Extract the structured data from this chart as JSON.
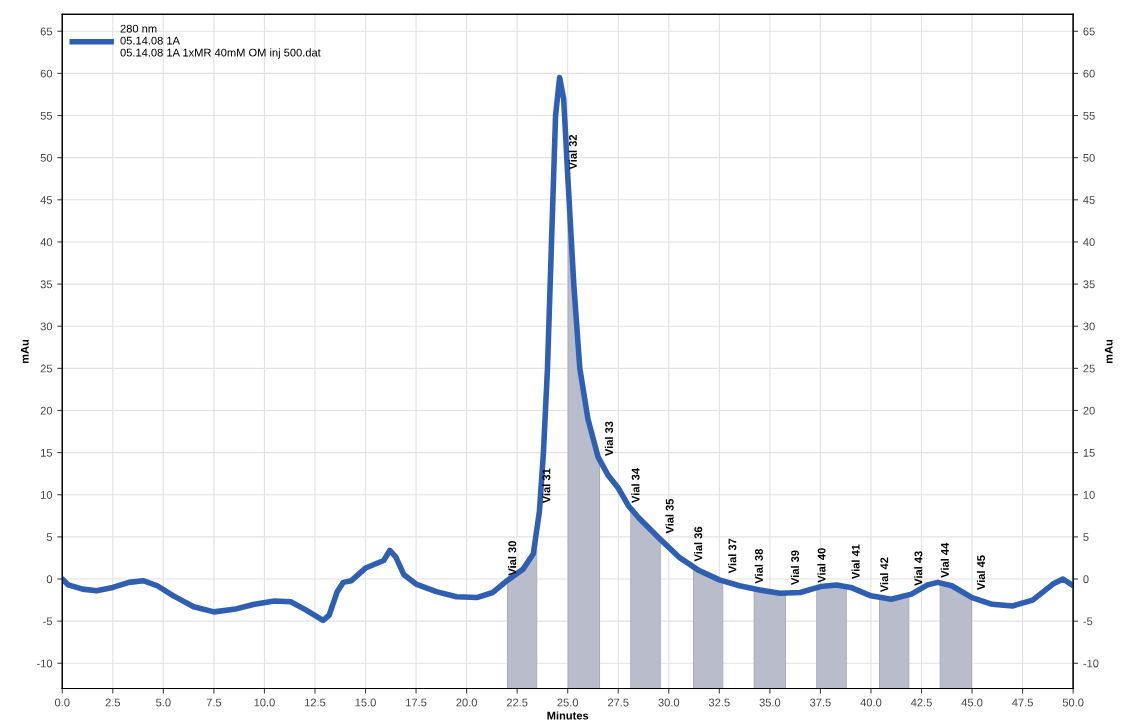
{
  "chart_data": {
    "type": "line",
    "xlabel": "Minutes",
    "ylabel": "mAu",
    "y2label": "mAu",
    "xlim": [
      0,
      50
    ],
    "xticks": [
      {
        "value": 0,
        "label": "0.0"
      },
      {
        "value": 2.5,
        "label": "2.5"
      },
      {
        "value": 5,
        "label": "5.0"
      },
      {
        "value": 7.5,
        "label": "7.5"
      },
      {
        "value": 10,
        "label": "10.0"
      },
      {
        "value": 12.5,
        "label": "12.5"
      },
      {
        "value": 15,
        "label": "15.0"
      },
      {
        "value": 17.5,
        "label": "17.5"
      },
      {
        "value": 20,
        "label": "20.0"
      },
      {
        "value": 22.5,
        "label": "22.5"
      },
      {
        "value": 25,
        "label": "25.0"
      },
      {
        "value": 27.5,
        "label": "27.5"
      },
      {
        "value": 30,
        "label": "30.0"
      },
      {
        "value": 32.5,
        "label": "32.5"
      },
      {
        "value": 35,
        "label": "35.0"
      },
      {
        "value": 37.5,
        "label": "37.5"
      },
      {
        "value": 40,
        "label": "40.0"
      },
      {
        "value": 42.5,
        "label": "42.5"
      },
      {
        "value": 45,
        "label": "45.0"
      },
      {
        "value": 47.5,
        "label": "47.5"
      },
      {
        "value": 50,
        "label": "50.0"
      }
    ],
    "ylim": [
      -13,
      67
    ],
    "yticks": [
      -10,
      -5,
      0,
      5,
      10,
      15,
      20,
      25,
      30,
      35,
      40,
      45,
      50,
      55,
      60,
      65
    ],
    "y2lim": [
      -13,
      67
    ],
    "y2ticks": [
      -10,
      -5,
      0,
      5,
      10,
      15,
      20,
      25,
      30,
      35,
      40,
      45,
      50,
      55,
      60,
      65
    ],
    "grid": true,
    "legend": "top left",
    "marker": "none",
    "line_style": "solid",
    "x": [
      0,
      0.3,
      1,
      1.7,
      2.5,
      3.3,
      4,
      4.7,
      5.5,
      6.5,
      7.5,
      8.5,
      9.5,
      10.5,
      11.3,
      12.0,
      12.9,
      13.2,
      13.6,
      13.9,
      14.3,
      15.0,
      15.6,
      15.9,
      16.2,
      16.5,
      16.9,
      17.5,
      18.5,
      19.5,
      20.5,
      21.3,
      22.0,
      22.8,
      23.3,
      23.6,
      23.8,
      24.0,
      24.2,
      24.4,
      24.6,
      24.8,
      25.0,
      25.3,
      25.6,
      26.0,
      26.5,
      27.0,
      27.5,
      28.0,
      28.5,
      29.5,
      30.5,
      31.5,
      32.5,
      33.5,
      34.5,
      35.5,
      36.5,
      37.5,
      38.3,
      39.0,
      40.0,
      41.0,
      42.0,
      42.8,
      43.3,
      44.0,
      45.0,
      46.0,
      47.0,
      48.0,
      49.0,
      49.5,
      50.0
    ],
    "series": [
      {
        "name": "280 nm\n05.14.08 1A\n05.14.08 1A 1xMR 40mM OM inj 500.dat",
        "color": "#2f5fb3",
        "values": [
          0,
          -0.7,
          -1.2,
          -1.4,
          -1.0,
          -0.4,
          -0.2,
          -0.8,
          -2.0,
          -3.3,
          -3.9,
          -3.6,
          -3.0,
          -2.6,
          -2.7,
          -3.6,
          -4.9,
          -4.3,
          -1.5,
          -0.4,
          -0.2,
          1.3,
          1.9,
          2.2,
          3.4,
          2.6,
          0.5,
          -0.6,
          -1.5,
          -2.1,
          -2.2,
          -1.6,
          -0.2,
          1.2,
          3.0,
          8,
          15,
          25,
          40,
          55,
          59.5,
          57,
          48,
          35,
          25,
          19,
          14.5,
          12.3,
          10.8,
          8.7,
          7.3,
          4.9,
          2.6,
          1.0,
          -0.1,
          -0.8,
          -1.3,
          -1.7,
          -1.6,
          -0.9,
          -0.7,
          -1.0,
          -2.0,
          -2.4,
          -1.8,
          -0.7,
          -0.4,
          -0.8,
          -2.2,
          -3.0,
          -3.2,
          -2.5,
          -0.6,
          0.0,
          -0.8
        ]
      }
    ],
    "bands": [
      {
        "axis": "x",
        "from": 22.0,
        "to": 23.5,
        "label": "Vial 30",
        "color": "#b9bccb"
      },
      {
        "axis": "x",
        "from": 25.0,
        "to": 26.6,
        "label": "Vial 32",
        "color": "#b9bccb"
      },
      {
        "axis": "x",
        "from": 28.1,
        "to": 29.6,
        "label": "Vial 34",
        "color": "#b9bccb"
      },
      {
        "axis": "x",
        "from": 31.2,
        "to": 32.7,
        "label": "Vial 36",
        "color": "#b9bccb"
      },
      {
        "axis": "x",
        "from": 34.2,
        "to": 35.8,
        "label": "Vial 38",
        "color": "#b9bccb"
      },
      {
        "axis": "x",
        "from": 37.3,
        "to": 38.8,
        "label": "Vial 40",
        "color": "#b9bccb"
      },
      {
        "axis": "x",
        "from": 40.4,
        "to": 41.9,
        "label": "Vial 42",
        "color": "#b9bccb"
      },
      {
        "axis": "x",
        "from": 43.4,
        "to": 45.0,
        "label": "Vial 44",
        "color": "#b9bccb"
      }
    ],
    "annotations": [
      {
        "text": "Vial 31",
        "x": 23.6,
        "y": 8
      },
      {
        "text": "Vial 33",
        "x": 26.7,
        "y": 13.6
      },
      {
        "text": "Vial 35",
        "x": 29.7,
        "y": 4.4
      },
      {
        "text": "Vial 37",
        "x": 32.8,
        "y": -0.3
      },
      {
        "text": "Vial 39",
        "x": 35.9,
        "y": -1.7
      },
      {
        "text": "Vial 41",
        "x": 38.9,
        "y": -1.0
      },
      {
        "text": "Vial 43",
        "x": 42.0,
        "y": -1.8
      },
      {
        "text": "Vial 45",
        "x": 45.1,
        "y": -2.3
      }
    ]
  }
}
